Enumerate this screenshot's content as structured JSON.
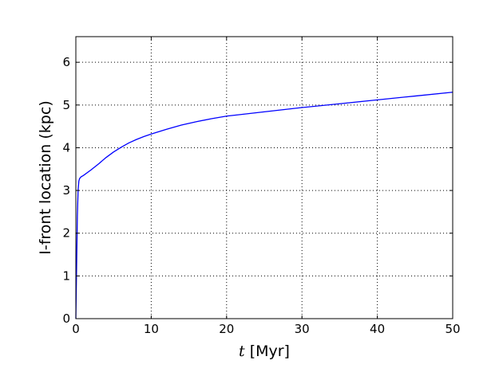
{
  "chart_data": {
    "type": "line",
    "title": "",
    "xlabel_var": "t",
    "xlabel_unit": " [Myr]",
    "ylabel": "I-front location (kpc)",
    "xlim": [
      0,
      50
    ],
    "ylim": [
      0,
      6.6
    ],
    "xticks": [
      0,
      10,
      20,
      30,
      40,
      50
    ],
    "yticks": [
      0,
      1,
      2,
      3,
      4,
      5,
      6
    ],
    "grid": true,
    "line_color": "#0000ff",
    "series": [
      {
        "x": [
          0,
          0.1,
          0.2,
          0.3,
          0.4,
          0.5,
          0.7,
          1,
          2,
          3,
          4,
          5,
          6,
          7,
          8,
          9,
          10,
          12,
          14,
          16,
          18,
          20,
          22,
          25,
          30,
          35,
          40,
          45,
          50
        ],
        "values": [
          0,
          1.2,
          2.4,
          3.0,
          3.22,
          3.28,
          3.32,
          3.35,
          3.48,
          3.62,
          3.77,
          3.9,
          4.01,
          4.11,
          4.19,
          4.26,
          4.32,
          4.43,
          4.53,
          4.61,
          4.68,
          4.74,
          4.78,
          4.84,
          4.94,
          5.03,
          5.12,
          5.21,
          5.3
        ]
      }
    ]
  }
}
